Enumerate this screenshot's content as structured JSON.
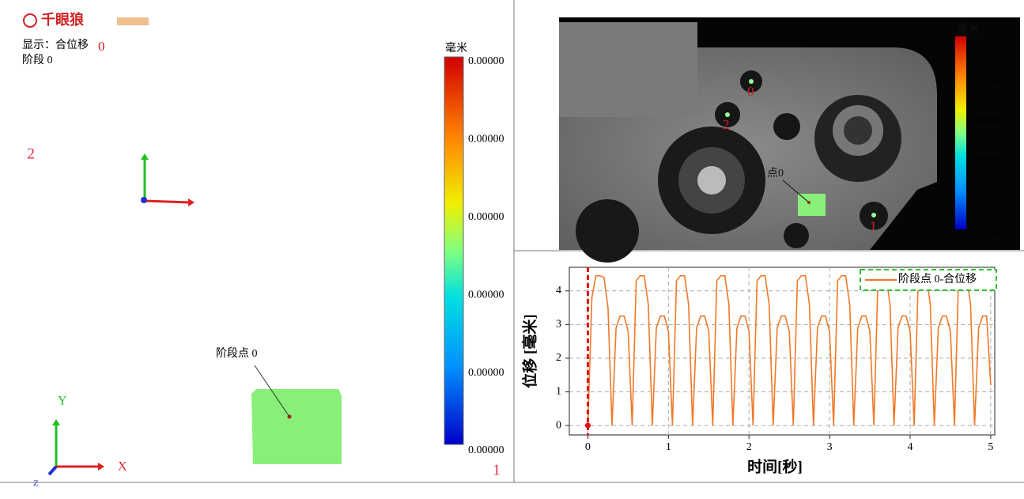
{
  "left_panel": {
    "logo": "千眼狼",
    "display_label": "显示：合位移",
    "display_index": "0",
    "stage": "阶段 0",
    "point_2": "2",
    "point_1": "1",
    "point_label": "阶段点 0",
    "axis_y": "Y",
    "axis_x": "X",
    "axis_z": "Z",
    "colorbar": {
      "unit": "毫米",
      "labels": [
        "0.00000",
        "0.00000",
        "0.00000",
        "0.00000",
        "0.00000",
        "0.00000"
      ]
    }
  },
  "image_panel": {
    "point_0": "0",
    "point_2": "2",
    "point_1": "1",
    "point_label": "点0",
    "colorbar": {
      "unit": "毫米",
      "labels": [
        "0.00000",
        "0.00000",
        "0.00000",
        "0.00000",
        "0.00000",
        "0.00000"
      ]
    }
  },
  "chart_data": {
    "type": "line",
    "xlabel": "时间[秒]",
    "ylabel": "位移 [毫米]",
    "xlim": [
      -0.23,
      5.05
    ],
    "ylim": [
      -0.28,
      4.7
    ],
    "xticks": [
      0,
      1,
      2,
      3,
      4,
      5
    ],
    "yticks": [
      0,
      1,
      2,
      3,
      4
    ],
    "grid": true,
    "legend": "top-right",
    "cursor": 0,
    "x": [
      0,
      0.05,
      0.1,
      0.15,
      0.2,
      0.25,
      0.3,
      0.35,
      0.4,
      0.45,
      0.5,
      0.55,
      0.6,
      0.65,
      0.7,
      0.75,
      0.8,
      0.85,
      0.9,
      0.95,
      1,
      1.05,
      1.1,
      1.15,
      1.2,
      1.25,
      1.3,
      1.35,
      1.4,
      1.45,
      1.5,
      1.55,
      1.6,
      1.65,
      1.7,
      1.75,
      1.8,
      1.85,
      1.9,
      1.95,
      2,
      2.05,
      2.1,
      2.15,
      2.2,
      2.25,
      2.3,
      2.35,
      2.4,
      2.45,
      2.5,
      2.55,
      2.6,
      2.65,
      2.7,
      2.75,
      2.8,
      2.85,
      2.9,
      2.95,
      3,
      3.05,
      3.1,
      3.15,
      3.2,
      3.25,
      3.3,
      3.35,
      3.4,
      3.45,
      3.5,
      3.55,
      3.6,
      3.65,
      3.7,
      3.75,
      3.8,
      3.85,
      3.9,
      3.95,
      4,
      4.05,
      4.1,
      4.15,
      4.2,
      4.25,
      4.3,
      4.35,
      4.4,
      4.45,
      4.5,
      4.55,
      4.6,
      4.65,
      4.7,
      4.75,
      4.8,
      4.85,
      4.9,
      4.95,
      5
    ],
    "series": [
      {
        "name": "阶段点 0-合位移",
        "color": "#f07828",
        "values": [
          0,
          3.8,
          4.45,
          4.45,
          4.4,
          3.5,
          0,
          2.9,
          3.25,
          3.25,
          2.8,
          0,
          4.3,
          4.45,
          4.45,
          3.6,
          0,
          2.9,
          3.25,
          3.25,
          2.8,
          0,
          4.3,
          4.45,
          4.45,
          3.6,
          0,
          2.9,
          3.25,
          3.25,
          2.8,
          0,
          4.3,
          4.45,
          4.45,
          3.6,
          0,
          2.9,
          3.25,
          3.25,
          2.8,
          0,
          4.3,
          4.45,
          4.45,
          3.6,
          0,
          2.9,
          3.25,
          3.25,
          2.8,
          0,
          4.3,
          4.45,
          4.45,
          3.6,
          0,
          2.9,
          3.25,
          3.25,
          2.8,
          0,
          4.3,
          4.45,
          4.45,
          3.6,
          0,
          2.9,
          3.25,
          3.25,
          2.8,
          0,
          4.3,
          4.45,
          4.45,
          3.6,
          0,
          2.9,
          3.25,
          3.25,
          2.8,
          0,
          4.3,
          4.45,
          4.45,
          3.6,
          0,
          2.9,
          3.25,
          3.25,
          2.8,
          0,
          4.3,
          4.45,
          4.45,
          3.6,
          0,
          2.9,
          3.25,
          3.25,
          1.2
        ]
      }
    ]
  }
}
